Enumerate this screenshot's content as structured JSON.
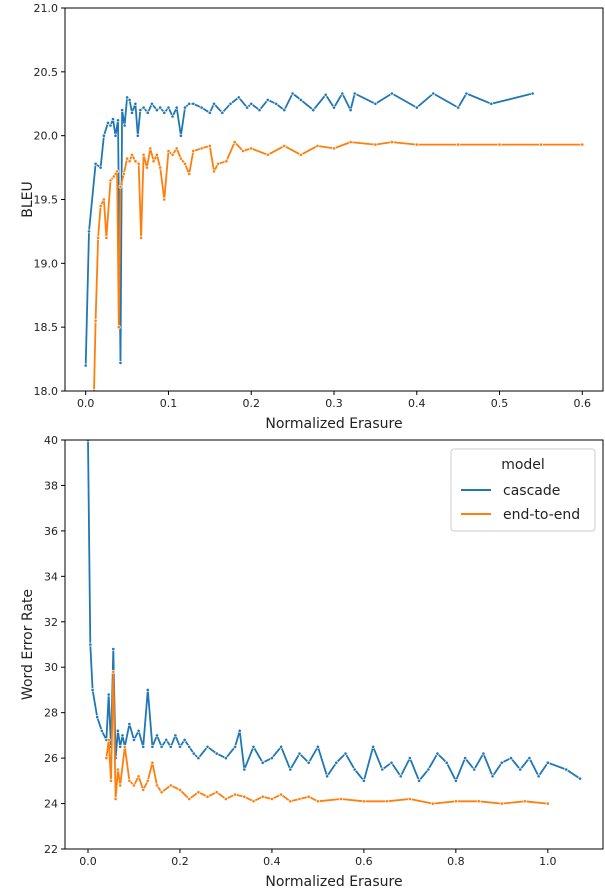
{
  "colors": {
    "cascade": "#1f77b4",
    "end_to_end": "#ff7f0e"
  },
  "legend": {
    "title": "model",
    "placement": "top-right"
  },
  "chart_data": [
    {
      "type": "line",
      "xlabel": "Normalized Erasure",
      "ylabel": "BLEU",
      "xlim": [
        -0.025,
        0.625
      ],
      "ylim": [
        18.0,
        21.0
      ],
      "xticks": [
        0.0,
        0.1,
        0.2,
        0.3,
        0.4,
        0.5,
        0.6
      ],
      "yticks": [
        18.0,
        18.5,
        19.0,
        19.5,
        20.0,
        20.5,
        21.0
      ],
      "xtick_labels": [
        "0.0",
        "0.1",
        "0.2",
        "0.3",
        "0.4",
        "0.5",
        "0.6"
      ],
      "ytick_labels": [
        "18.0",
        "18.5",
        "19.0",
        "19.5",
        "20.0",
        "20.5",
        "21.0"
      ],
      "grid": false,
      "series": [
        {
          "name": "cascade",
          "x": [
            0.0,
            0.004,
            0.012,
            0.018,
            0.022,
            0.027,
            0.03,
            0.033,
            0.036,
            0.039,
            0.042,
            0.044,
            0.047,
            0.05,
            0.053,
            0.056,
            0.06,
            0.063,
            0.066,
            0.07,
            0.075,
            0.08,
            0.086,
            0.09,
            0.095,
            0.1,
            0.105,
            0.11,
            0.115,
            0.12,
            0.125,
            0.13,
            0.14,
            0.15,
            0.155,
            0.165,
            0.175,
            0.185,
            0.195,
            0.2,
            0.21,
            0.22,
            0.23,
            0.24,
            0.25,
            0.26,
            0.275,
            0.29,
            0.3,
            0.31,
            0.32,
            0.325,
            0.35,
            0.37,
            0.4,
            0.42,
            0.45,
            0.46,
            0.49,
            0.54
          ],
          "y": [
            18.2,
            19.25,
            19.78,
            19.75,
            20.0,
            20.1,
            20.08,
            20.13,
            20.0,
            20.12,
            18.22,
            20.2,
            20.08,
            20.3,
            20.28,
            20.18,
            20.25,
            20.0,
            20.2,
            20.22,
            20.18,
            20.25,
            20.2,
            20.22,
            20.18,
            20.22,
            20.15,
            20.22,
            20.0,
            20.22,
            20.25,
            20.25,
            20.22,
            20.18,
            20.25,
            20.18,
            20.25,
            20.3,
            20.22,
            20.25,
            20.2,
            20.28,
            20.25,
            20.2,
            20.33,
            20.28,
            20.2,
            20.32,
            20.22,
            20.33,
            20.2,
            20.33,
            20.25,
            20.33,
            20.22,
            20.33,
            20.22,
            20.33,
            20.25,
            20.33
          ]
        },
        {
          "name": "end-to-end",
          "x": [
            0.01,
            0.012,
            0.015,
            0.018,
            0.022,
            0.025,
            0.03,
            0.034,
            0.038,
            0.04,
            0.042,
            0.046,
            0.05,
            0.053,
            0.056,
            0.06,
            0.064,
            0.067,
            0.07,
            0.074,
            0.078,
            0.082,
            0.086,
            0.09,
            0.095,
            0.1,
            0.105,
            0.11,
            0.115,
            0.12,
            0.125,
            0.13,
            0.14,
            0.15,
            0.155,
            0.16,
            0.17,
            0.18,
            0.19,
            0.2,
            0.22,
            0.24,
            0.26,
            0.28,
            0.3,
            0.32,
            0.35,
            0.37,
            0.4,
            0.45,
            0.5,
            0.55,
            0.6
          ],
          "y": [
            18.0,
            18.55,
            19.2,
            19.45,
            19.5,
            19.2,
            19.65,
            19.68,
            19.72,
            18.5,
            19.6,
            19.7,
            19.82,
            19.8,
            19.85,
            19.8,
            19.78,
            19.2,
            19.85,
            19.75,
            19.9,
            19.8,
            19.85,
            19.75,
            19.5,
            19.88,
            19.85,
            19.9,
            19.82,
            19.78,
            19.7,
            19.88,
            19.9,
            19.92,
            19.72,
            19.78,
            19.8,
            19.95,
            19.88,
            19.9,
            19.85,
            19.92,
            19.85,
            19.92,
            19.9,
            19.95,
            19.93,
            19.95,
            19.93,
            19.93,
            19.93,
            19.93,
            19.93
          ]
        }
      ]
    },
    {
      "type": "line",
      "xlabel": "Normalized Erasure",
      "ylabel": "Word Error Rate",
      "xlim": [
        -0.05,
        1.12
      ],
      "ylim": [
        22,
        40
      ],
      "xticks": [
        0.0,
        0.2,
        0.4,
        0.6,
        0.8,
        1.0
      ],
      "yticks": [
        22,
        24,
        26,
        28,
        30,
        32,
        34,
        36,
        38,
        40
      ],
      "xtick_labels": [
        "0.0",
        "0.2",
        "0.4",
        "0.6",
        "0.8",
        "1.0"
      ],
      "ytick_labels": [
        "22",
        "24",
        "26",
        "28",
        "30",
        "32",
        "34",
        "36",
        "38",
        "40"
      ],
      "grid": false,
      "legend": [
        "cascade",
        "end-to-end"
      ],
      "series": [
        {
          "name": "cascade",
          "x": [
            0.0,
            0.005,
            0.01,
            0.02,
            0.03,
            0.04,
            0.045,
            0.05,
            0.055,
            0.06,
            0.065,
            0.07,
            0.075,
            0.08,
            0.09,
            0.1,
            0.11,
            0.12,
            0.13,
            0.14,
            0.15,
            0.16,
            0.17,
            0.18,
            0.19,
            0.2,
            0.21,
            0.22,
            0.23,
            0.24,
            0.26,
            0.28,
            0.3,
            0.32,
            0.33,
            0.34,
            0.36,
            0.38,
            0.4,
            0.42,
            0.44,
            0.46,
            0.48,
            0.5,
            0.52,
            0.54,
            0.56,
            0.58,
            0.6,
            0.62,
            0.64,
            0.66,
            0.68,
            0.7,
            0.72,
            0.74,
            0.76,
            0.78,
            0.8,
            0.82,
            0.84,
            0.86,
            0.88,
            0.9,
            0.92,
            0.94,
            0.96,
            0.98,
            1.0,
            1.04,
            1.07
          ],
          "y": [
            40.0,
            31.0,
            29.0,
            27.8,
            27.2,
            26.8,
            28.8,
            26.5,
            30.8,
            26.0,
            27.2,
            26.5,
            27.0,
            26.5,
            27.5,
            26.8,
            27.2,
            26.5,
            29.0,
            26.5,
            27.0,
            26.5,
            26.8,
            26.5,
            27.0,
            26.5,
            26.8,
            26.5,
            26.2,
            26.0,
            26.5,
            26.2,
            26.0,
            26.5,
            27.2,
            25.5,
            26.5,
            25.8,
            26.0,
            26.5,
            25.5,
            26.2,
            25.8,
            26.5,
            25.2,
            25.8,
            26.2,
            25.5,
            25.0,
            26.5,
            25.5,
            25.8,
            25.2,
            26.0,
            25.0,
            25.5,
            26.2,
            25.8,
            25.0,
            26.0,
            25.5,
            26.2,
            25.2,
            25.8,
            26.0,
            25.5,
            26.0,
            25.2,
            25.8,
            25.5,
            25.1
          ]
        },
        {
          "name": "end-to-end",
          "x": [
            0.04,
            0.045,
            0.05,
            0.055,
            0.06,
            0.065,
            0.07,
            0.08,
            0.09,
            0.1,
            0.11,
            0.12,
            0.13,
            0.14,
            0.15,
            0.16,
            0.18,
            0.2,
            0.22,
            0.24,
            0.26,
            0.28,
            0.3,
            0.32,
            0.34,
            0.36,
            0.38,
            0.4,
            0.42,
            0.44,
            0.46,
            0.48,
            0.5,
            0.55,
            0.6,
            0.65,
            0.7,
            0.75,
            0.8,
            0.85,
            0.9,
            0.95,
            1.0
          ],
          "y": [
            26.0,
            26.8,
            25.0,
            29.8,
            24.2,
            25.5,
            24.8,
            26.5,
            25.0,
            24.8,
            25.2,
            24.6,
            25.0,
            25.8,
            24.8,
            24.5,
            24.8,
            24.6,
            24.2,
            24.5,
            24.3,
            24.5,
            24.2,
            24.4,
            24.3,
            24.1,
            24.3,
            24.2,
            24.4,
            24.1,
            24.2,
            24.3,
            24.1,
            24.2,
            24.1,
            24.1,
            24.2,
            24.0,
            24.1,
            24.1,
            24.0,
            24.1,
            24.0
          ]
        }
      ]
    }
  ]
}
